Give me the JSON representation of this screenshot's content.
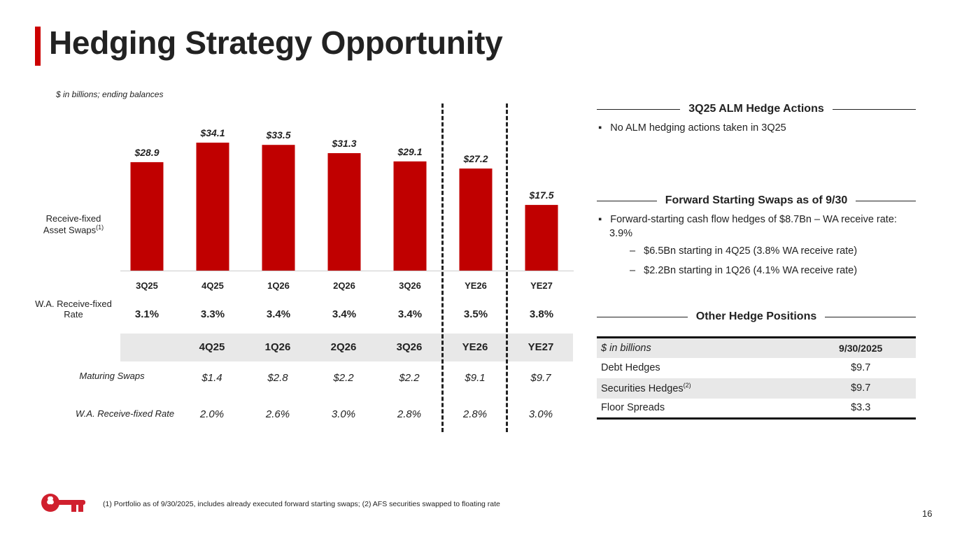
{
  "title": "Hedging Strategy Opportunity",
  "units_note": "$ in billions; ending balances",
  "row_labels": {
    "swaps": "Receive-fixed Asset Swaps",
    "swaps_sup": "(1)",
    "wa_rate": "W.A. Receive-fixed Rate",
    "maturing": "Maturing Swaps",
    "maturing_rate": "W.A. Receive-fixed Rate"
  },
  "chart_data": {
    "type": "bar",
    "categories": [
      "3Q25",
      "4Q25",
      "1Q26",
      "2Q26",
      "3Q26",
      "YE26",
      "YE27"
    ],
    "values": [
      28.9,
      34.1,
      33.5,
      31.3,
      29.1,
      27.2,
      17.5
    ],
    "data_labels": [
      "$28.9",
      "$34.1",
      "$33.5",
      "$31.3",
      "$29.1",
      "$27.2",
      "$17.5"
    ],
    "ylim": [
      0,
      40
    ],
    "bar_color": "#c00000",
    "wa_rates": [
      "3.1%",
      "3.3%",
      "3.4%",
      "3.4%",
      "3.4%",
      "3.5%",
      "3.8%"
    ]
  },
  "maturing": {
    "headers": [
      "4Q25",
      "1Q26",
      "2Q26",
      "3Q26",
      "YE26",
      "YE27"
    ],
    "amounts": [
      "$1.4",
      "$2.8",
      "$2.2",
      "$2.2",
      "$9.1",
      "$9.7"
    ],
    "rates": [
      "2.0%",
      "2.6%",
      "3.0%",
      "2.8%",
      "2.8%",
      "3.0%"
    ]
  },
  "alm": {
    "heading": "3Q25 ALM Hedge Actions",
    "bullets": [
      "No ALM hedging actions taken in 3Q25"
    ]
  },
  "fss": {
    "heading": "Forward Starting Swaps as of 9/30",
    "bullet": "Forward-starting cash flow hedges of $8.7Bn – WA receive rate: 3.9%",
    "subs": [
      "$6.5Bn starting in 4Q25 (3.8% WA receive rate)",
      "$2.2Bn starting in 1Q26 (4.1% WA receive rate)"
    ]
  },
  "other": {
    "heading": "Other Hedge Positions",
    "col0": "$ in billions",
    "col1": "9/30/2025",
    "rows": [
      {
        "label": "Debt Hedges",
        "sup": "",
        "value": "$9.7"
      },
      {
        "label": "Securities Hedges",
        "sup": "(2)",
        "value": "$9.7"
      },
      {
        "label": "Floor Spreads",
        "sup": "",
        "value": "$3.3"
      }
    ]
  },
  "footnote": "(1) Portfolio as of 9/30/2025, includes already executed forward starting swaps; (2) AFS securities swapped to floating rate",
  "page_number": "16"
}
